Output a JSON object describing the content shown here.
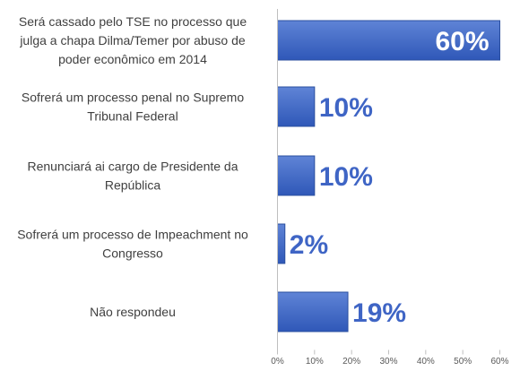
{
  "chart_data": {
    "type": "bar",
    "orientation": "horizontal",
    "categories": [
      "Será cassado pelo TSE no processo que julga a chapa Dilma/Temer por abuso de poder econômico em 2014",
      "Sofrerá um processo penal no Supremo Tribunal Federal",
      "Renunciará ai cargo de Presidente da República",
      "Sofrerá um processo de Impeachment no Congresso",
      "Não respondeu"
    ],
    "category_lines": [
      [
        "Será cassado pelo TSE no processo que",
        "julga a chapa Dilma/Temer por abuso de",
        "poder econômico em 2014"
      ],
      [
        "Sofrerá um processo penal no Supremo",
        "Tribunal Federal"
      ],
      [
        "Renunciará ai cargo de Presidente da",
        "República"
      ],
      [
        "Sofrerá um processo de Impeachment no",
        "Congresso"
      ],
      [
        "Não respondeu"
      ]
    ],
    "values": [
      60,
      10,
      10,
      2,
      19
    ],
    "value_labels": [
      "60%",
      "10%",
      "10%",
      "2%",
      "19%"
    ],
    "xlim": [
      0,
      60
    ],
    "x_ticks": [
      0,
      10,
      20,
      30,
      40,
      50,
      60
    ],
    "x_tick_labels": [
      "0%",
      "10%",
      "20%",
      "30%",
      "40%",
      "50%",
      "60%"
    ],
    "grid": false,
    "legend": "none",
    "colors": {
      "bar_top": "#5f84d6",
      "bar_bottom": "#2f58b8",
      "bar_edge": "#2b4f9f",
      "label_color": "#3f65c5",
      "inner_label_color": "#ffffff",
      "category_text": "#404040",
      "axis_text": "#595959",
      "axis_line": "#bfbfbf"
    }
  }
}
